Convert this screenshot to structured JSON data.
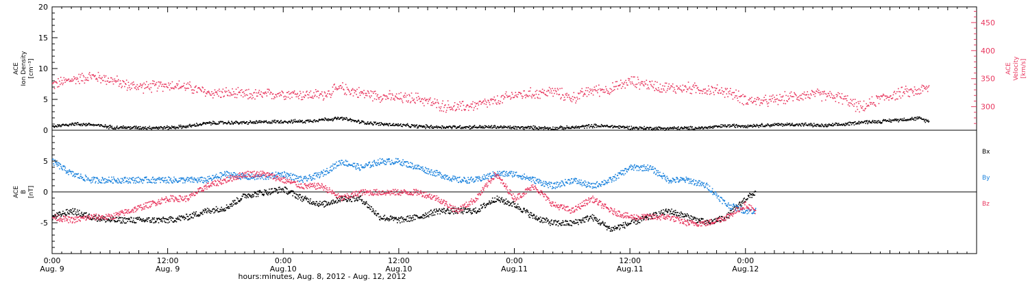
{
  "colors": {
    "black": "#000000",
    "pink": "#e8365e",
    "blue": "#1a82dd"
  },
  "chart_data": [
    {
      "type": "scatter",
      "panel": "top",
      "ylabel_lines": [
        "ACE",
        "Ion Density",
        "[cm⁻³]"
      ],
      "ylim": [
        0,
        20
      ],
      "yticks": [
        "0",
        "5",
        "10",
        "15",
        "20"
      ],
      "y2label_lines": [
        "ACE",
        "Velocity",
        "[km/s]"
      ],
      "y2lim": [
        258,
        478
      ],
      "y2ticks": [
        "300",
        "350",
        "400",
        "450"
      ],
      "x_hours": [
        0,
        96
      ],
      "series": [
        {
          "color": "pink",
          "axis": "right",
          "points": [
            [
              0,
              340
            ],
            [
              2,
              349
            ],
            [
              4,
              355
            ],
            [
              6,
              349
            ],
            [
              8,
              338
            ],
            [
              10,
              336
            ],
            [
              12,
              340
            ],
            [
              14,
              336
            ],
            [
              16,
              326
            ],
            [
              18,
              325
            ],
            [
              20,
              322
            ],
            [
              22,
              322
            ],
            [
              24,
              325
            ],
            [
              26,
              322
            ],
            [
              28,
              322
            ],
            [
              30,
              334
            ],
            [
              32,
              325
            ],
            [
              34,
              320
            ],
            [
              36,
              316
            ],
            [
              38,
              316
            ],
            [
              40,
              304
            ],
            [
              42,
              299
            ],
            [
              44,
              304
            ],
            [
              46,
              310
            ],
            [
              48,
              322
            ],
            [
              50,
              324
            ],
            [
              52,
              328
            ],
            [
              54,
              316
            ],
            [
              56,
              330
            ],
            [
              58,
              332
            ],
            [
              60,
              346
            ],
            [
              62,
              340
            ],
            [
              64,
              334
            ],
            [
              66,
              334
            ],
            [
              68,
              331
            ],
            [
              70,
              328
            ],
            [
              72,
              313
            ],
            [
              74,
              310
            ],
            [
              76,
              316
            ],
            [
              78,
              322
            ],
            [
              80,
              322
            ],
            [
              82,
              316
            ],
            [
              84,
              298
            ],
            [
              86,
              316
            ],
            [
              88,
              325
            ],
            [
              90,
              330
            ],
            [
              91,
              334
            ]
          ]
        },
        {
          "color": "black",
          "axis": "left",
          "points": [
            [
              0,
              0.7
            ],
            [
              2,
              1.1
            ],
            [
              4,
              1.0
            ],
            [
              6,
              0.6
            ],
            [
              8,
              0.5
            ],
            [
              10,
              0.5
            ],
            [
              12,
              0.5
            ],
            [
              14,
              0.7
            ],
            [
              16,
              1.2
            ],
            [
              18,
              1.3
            ],
            [
              20,
              1.3
            ],
            [
              22,
              1.4
            ],
            [
              24,
              1.5
            ],
            [
              26,
              1.5
            ],
            [
              28,
              1.8
            ],
            [
              30,
              2.0
            ],
            [
              32,
              1.4
            ],
            [
              34,
              1.1
            ],
            [
              36,
              0.9
            ],
            [
              38,
              0.7
            ],
            [
              40,
              0.6
            ],
            [
              42,
              0.6
            ],
            [
              44,
              0.6
            ],
            [
              46,
              0.6
            ],
            [
              48,
              0.5
            ],
            [
              50,
              0.5
            ],
            [
              52,
              0.4
            ],
            [
              54,
              0.5
            ],
            [
              56,
              0.8
            ],
            [
              58,
              0.7
            ],
            [
              60,
              0.5
            ],
            [
              62,
              0.4
            ],
            [
              64,
              0.4
            ],
            [
              66,
              0.4
            ],
            [
              68,
              0.5
            ],
            [
              70,
              0.8
            ],
            [
              72,
              0.8
            ],
            [
              74,
              0.9
            ],
            [
              76,
              1.0
            ],
            [
              78,
              1.0
            ],
            [
              80,
              0.8
            ],
            [
              82,
              1.0
            ],
            [
              84,
              1.4
            ],
            [
              86,
              1.5
            ],
            [
              88,
              1.8
            ],
            [
              90,
              2.0
            ],
            [
              91,
              1.5
            ]
          ]
        }
      ]
    },
    {
      "type": "scatter",
      "panel": "bottom",
      "ylabel_lines": [
        "ACE",
        "B",
        "[nT]"
      ],
      "ylim": [
        -10,
        10
      ],
      "yticks": [
        "-5",
        "0",
        "5"
      ],
      "zero_line": true,
      "x_hours": [
        0,
        96
      ],
      "xticks": [
        {
          "hour": 0,
          "line1": "0:00",
          "line2": "Aug. 9"
        },
        {
          "hour": 12,
          "line1": "12:00",
          "line2": "Aug. 9"
        },
        {
          "hour": 24,
          "line1": "0:00",
          "line2": "Aug.10"
        },
        {
          "hour": 36,
          "line1": "12:00",
          "line2": "Aug.10"
        },
        {
          "hour": 48,
          "line1": "0:00",
          "line2": "Aug.11"
        },
        {
          "hour": 60,
          "line1": "12:00",
          "line2": "Aug.11"
        },
        {
          "hour": 72,
          "line1": "0:00",
          "line2": "Aug.12"
        }
      ],
      "xlabel": "hours:minutes, Aug.  8, 2012 - Aug. 12, 2012",
      "legend": [
        "Bx",
        "By",
        "Bz"
      ],
      "series": [
        {
          "name": "Bx",
          "color": "black",
          "points": [
            [
              0,
              -4
            ],
            [
              2,
              -3
            ],
            [
              4,
              -4
            ],
            [
              6,
              -4.5
            ],
            [
              8,
              -4.5
            ],
            [
              10,
              -4.5
            ],
            [
              12,
              -4.5
            ],
            [
              14,
              -4
            ],
            [
              16,
              -3
            ],
            [
              18,
              -2.5
            ],
            [
              20,
              -0.5
            ],
            [
              22,
              0
            ],
            [
              24,
              0.5
            ],
            [
              26,
              -1
            ],
            [
              28,
              -2
            ],
            [
              30,
              -1
            ],
            [
              32,
              -1
            ],
            [
              34,
              -4
            ],
            [
              36,
              -4.5
            ],
            [
              38,
              -4
            ],
            [
              40,
              -3
            ],
            [
              42,
              -3
            ],
            [
              44,
              -3
            ],
            [
              46,
              -1
            ],
            [
              48,
              -2
            ],
            [
              50,
              -4
            ],
            [
              52,
              -5
            ],
            [
              54,
              -5
            ],
            [
              56,
              -4
            ],
            [
              58,
              -6
            ],
            [
              60,
              -5
            ],
            [
              62,
              -4
            ],
            [
              64,
              -3
            ],
            [
              66,
              -4
            ],
            [
              68,
              -5
            ],
            [
              70,
              -4
            ],
            [
              72,
              -1
            ],
            [
              73,
              0
            ]
          ]
        },
        {
          "name": "By",
          "color": "blue",
          "points": [
            [
              0,
              5
            ],
            [
              2,
              3
            ],
            [
              4,
              2
            ],
            [
              6,
              2
            ],
            [
              8,
              2
            ],
            [
              10,
              2
            ],
            [
              12,
              2
            ],
            [
              14,
              2
            ],
            [
              16,
              2
            ],
            [
              18,
              3
            ],
            [
              20,
              2.5
            ],
            [
              22,
              2.5
            ],
            [
              24,
              3
            ],
            [
              26,
              2
            ],
            [
              28,
              3
            ],
            [
              30,
              5
            ],
            [
              32,
              4
            ],
            [
              34,
              5
            ],
            [
              36,
              5
            ],
            [
              38,
              4
            ],
            [
              40,
              3
            ],
            [
              42,
              2
            ],
            [
              44,
              2
            ],
            [
              46,
              3
            ],
            [
              48,
              3
            ],
            [
              50,
              2
            ],
            [
              52,
              1
            ],
            [
              54,
              2
            ],
            [
              56,
              1
            ],
            [
              58,
              2
            ],
            [
              60,
              4
            ],
            [
              62,
              4
            ],
            [
              64,
              2
            ],
            [
              66,
              2
            ],
            [
              68,
              1
            ],
            [
              70,
              -2
            ],
            [
              72,
              -3
            ],
            [
              73,
              -3
            ]
          ]
        },
        {
          "name": "Bz",
          "color": "pink",
          "points": [
            [
              0,
              -4
            ],
            [
              2,
              -4.5
            ],
            [
              4,
              -4
            ],
            [
              6,
              -4
            ],
            [
              8,
              -3
            ],
            [
              10,
              -2
            ],
            [
              12,
              -1
            ],
            [
              14,
              -1
            ],
            [
              16,
              1
            ],
            [
              18,
              2
            ],
            [
              20,
              3
            ],
            [
              22,
              3
            ],
            [
              24,
              2
            ],
            [
              26,
              1
            ],
            [
              28,
              1
            ],
            [
              30,
              -1
            ],
            [
              32,
              0
            ],
            [
              34,
              0
            ],
            [
              36,
              0
            ],
            [
              38,
              0
            ],
            [
              40,
              -1
            ],
            [
              42,
              -3
            ],
            [
              44,
              -1
            ],
            [
              46,
              3
            ],
            [
              48,
              -1
            ],
            [
              50,
              1
            ],
            [
              52,
              -2
            ],
            [
              54,
              -3
            ],
            [
              56,
              -1
            ],
            [
              58,
              -3
            ],
            [
              60,
              -4
            ],
            [
              62,
              -4
            ],
            [
              64,
              -4
            ],
            [
              66,
              -5
            ],
            [
              68,
              -5
            ],
            [
              70,
              -4
            ],
            [
              72,
              -2
            ],
            [
              73,
              -3
            ]
          ]
        }
      ]
    }
  ]
}
